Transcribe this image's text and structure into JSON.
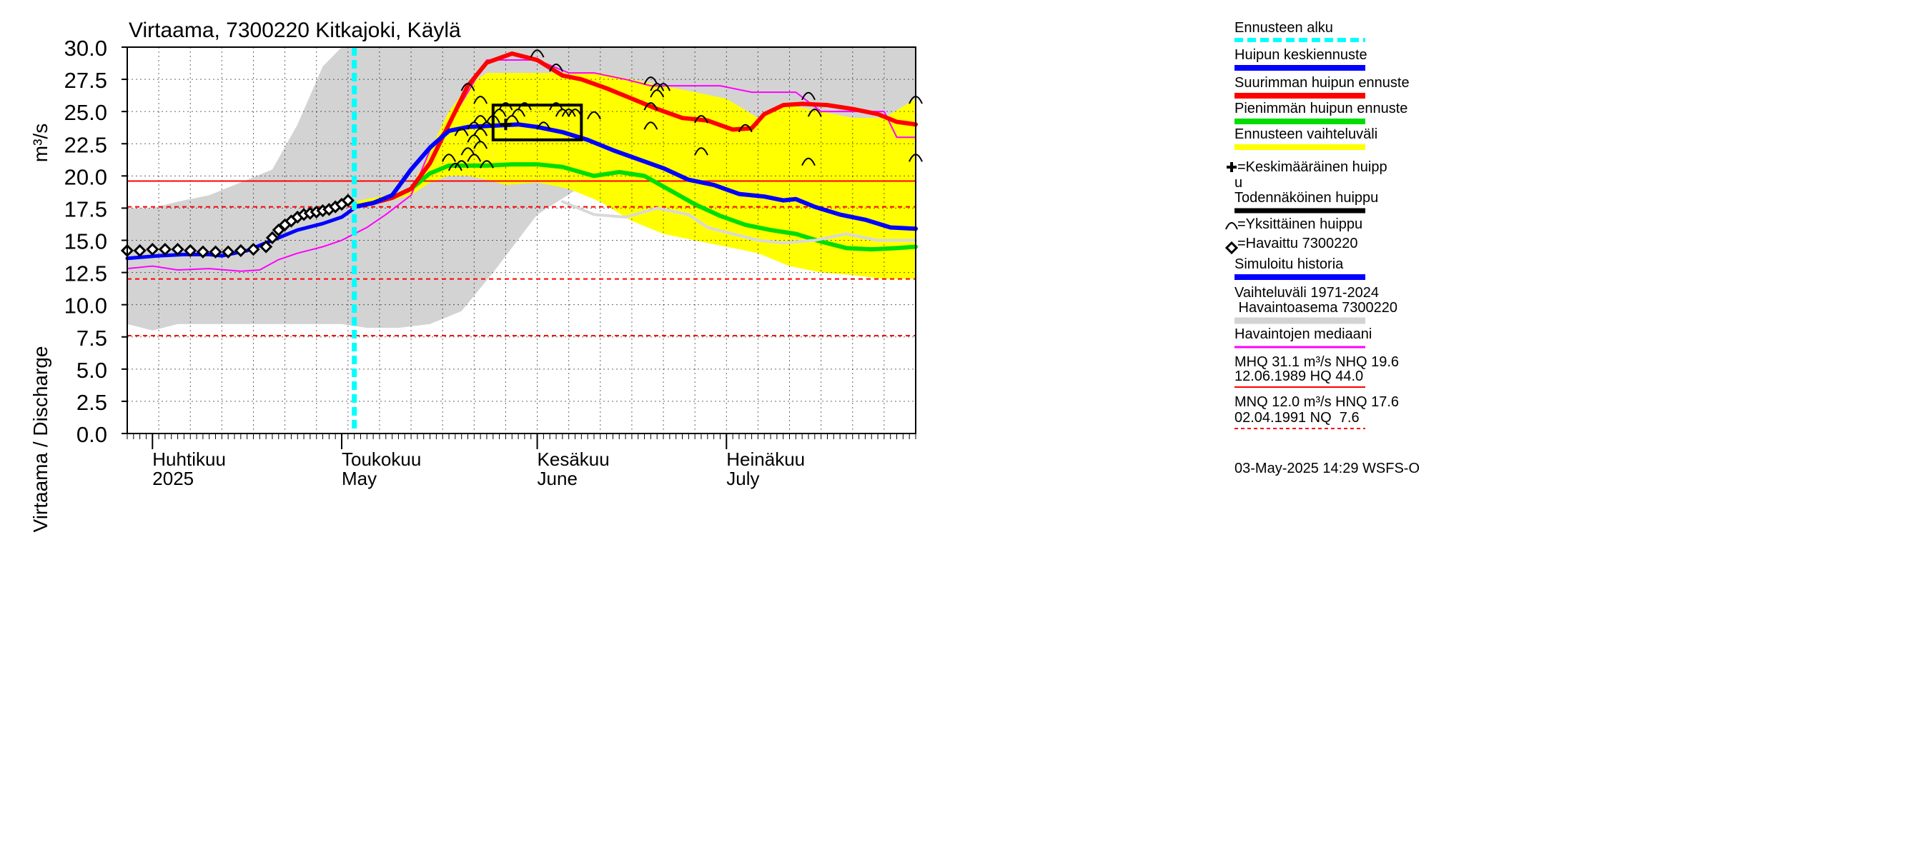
{
  "chart_data": {
    "type": "line",
    "title": "Virtaama, 7300220 Kitkajoki, Käylä",
    "ylabel": "Virtaama / Discharge",
    "yunit": "m³/s",
    "ylim": [
      0,
      30
    ],
    "yticks": [
      "0.0",
      "2.5",
      "5.0",
      "7.5",
      "10.0",
      "12.5",
      "15.0",
      "17.5",
      "20.0",
      "22.5",
      "25.0",
      "27.5",
      "30.0"
    ],
    "xrange": [
      "2025-03-28",
      "2025-07-31"
    ],
    "month_labels": [
      {
        "fi": "Huhtikuu",
        "en": "2025",
        "date": "2025-04-01"
      },
      {
        "fi": "Toukokuu",
        "en": "May",
        "date": "2025-05-01"
      },
      {
        "fi": "Kesäkuu",
        "en": "June",
        "date": "2025-06-01"
      },
      {
        "fi": "Heinäkuu",
        "en": "July",
        "date": "2025-07-01"
      }
    ],
    "forecast_start": "2025-05-03",
    "reference_lines": [
      {
        "label": "NHQ",
        "value": 19.6,
        "style": "solid",
        "color": "#ff0000"
      },
      {
        "label": "HNQ",
        "value": 17.6,
        "style": "dashed",
        "color": "#ff0000"
      },
      {
        "label": "MNQ",
        "value": 12.0,
        "style": "dashed",
        "color": "#ff0000"
      },
      {
        "label": "NQ",
        "value": 7.6,
        "style": "dashed",
        "color": "#ff0000"
      }
    ],
    "hist_range_band": {
      "name": "Vaihteluväli 1971-2024 Havaintoasema 7300220",
      "color": "#d3d3d3",
      "x": [
        "2025-03-28",
        "2025-04-01",
        "2025-04-05",
        "2025-04-10",
        "2025-04-15",
        "2025-04-20",
        "2025-04-24",
        "2025-04-28",
        "2025-05-01",
        "2025-05-05",
        "2025-05-10",
        "2025-05-15",
        "2025-05-20",
        "2025-05-25",
        "2025-06-01",
        "2025-06-10",
        "2025-06-20",
        "2025-06-30",
        "2025-07-10",
        "2025-07-20",
        "2025-07-31"
      ],
      "upper": [
        17.5,
        17.5,
        18.0,
        18.5,
        19.5,
        20.5,
        24.0,
        28.5,
        30.0,
        30.0,
        30.0,
        30.0,
        30.0,
        30.0,
        30.0,
        30.0,
        30.0,
        30.0,
        30.0,
        30.0,
        30.0
      ],
      "lower": [
        8.5,
        8.0,
        8.5,
        8.5,
        8.5,
        8.5,
        8.5,
        8.5,
        8.5,
        8.2,
        8.2,
        8.5,
        9.5,
        12.5,
        17.0,
        19.8,
        18.0,
        16.2,
        15.4,
        15.1,
        15.0
      ]
    },
    "forecast_band": {
      "name": "Ennusteen vaihteluväli",
      "color": "#ffff00",
      "x": [
        "2025-05-03",
        "2025-05-08",
        "2025-05-12",
        "2025-05-15",
        "2025-05-18",
        "2025-05-21",
        "2025-05-24",
        "2025-05-27",
        "2025-06-01",
        "2025-06-06",
        "2025-06-11",
        "2025-06-16",
        "2025-06-21",
        "2025-06-26",
        "2025-07-01",
        "2025-07-06",
        "2025-07-11",
        "2025-07-16",
        "2025-07-21",
        "2025-07-26",
        "2025-07-31"
      ],
      "upper": [
        18.0,
        18.5,
        19.0,
        22.0,
        25.0,
        27.0,
        28.0,
        28.0,
        28.0,
        28.0,
        28.0,
        27.5,
        27.0,
        26.5,
        26.0,
        24.5,
        25.5,
        25.0,
        24.5,
        24.5,
        26.0
      ],
      "lower": [
        17.6,
        18.0,
        18.5,
        19.5,
        20.0,
        20.0,
        19.7,
        19.3,
        19.5,
        19.0,
        18.0,
        16.5,
        15.5,
        15.0,
        14.5,
        14.0,
        13.0,
        12.5,
        12.3,
        12.0,
        12.0
      ]
    },
    "series": [
      {
        "name": "Havaintojen mediaani",
        "color": "#ff00ff",
        "width": 2,
        "x": [
          "2025-03-28",
          "2025-04-01",
          "2025-04-05",
          "2025-04-10",
          "2025-04-15",
          "2025-04-18",
          "2025-04-21",
          "2025-04-24",
          "2025-04-28",
          "2025-05-01",
          "2025-05-05",
          "2025-05-08",
          "2025-05-12",
          "2025-05-15",
          "2025-05-18",
          "2025-05-21",
          "2025-05-24",
          "2025-05-28",
          "2025-06-01",
          "2025-06-06",
          "2025-06-10",
          "2025-06-15",
          "2025-06-19",
          "2025-06-24",
          "2025-06-30",
          "2025-07-05",
          "2025-07-08",
          "2025-07-12",
          "2025-07-16",
          "2025-07-20",
          "2025-07-26",
          "2025-07-28",
          "2025-07-31"
        ],
        "y": [
          12.8,
          13.0,
          12.7,
          12.8,
          12.6,
          12.7,
          13.5,
          14.0,
          14.5,
          15.0,
          16.0,
          17.0,
          18.5,
          22.0,
          24.0,
          26.5,
          29.0,
          29.0,
          29.0,
          28.0,
          28.0,
          27.5,
          27.0,
          27.0,
          27.0,
          26.5,
          26.5,
          26.5,
          25.0,
          25.0,
          25.0,
          23.0,
          23.0
        ]
      },
      {
        "name": "Simuloitu historia",
        "color": "#0000ff",
        "width": 5,
        "x": [
          "2025-03-28",
          "2025-04-02",
          "2025-04-06",
          "2025-04-10",
          "2025-04-12",
          "2025-04-16",
          "2025-04-20",
          "2025-04-24",
          "2025-04-28",
          "2025-05-01",
          "2025-05-03"
        ],
        "y": [
          13.6,
          13.8,
          13.9,
          13.9,
          13.8,
          14.2,
          15.0,
          15.8,
          16.3,
          16.8,
          17.5
        ]
      },
      {
        "name": "Pienimmän huipun ennuste",
        "color": "#00dd00",
        "width": 6,
        "x": [
          "2025-05-03",
          "2025-05-06",
          "2025-05-09",
          "2025-05-12",
          "2025-05-15",
          "2025-05-18",
          "2025-05-21",
          "2025-05-24",
          "2025-05-28",
          "2025-06-01",
          "2025-06-05",
          "2025-06-10",
          "2025-06-14",
          "2025-06-18",
          "2025-06-22",
          "2025-06-26",
          "2025-06-30",
          "2025-07-04",
          "2025-07-08",
          "2025-07-12",
          "2025-07-16",
          "2025-07-20",
          "2025-07-24",
          "2025-07-28",
          "2025-07-31"
        ],
        "y": [
          17.6,
          17.9,
          18.3,
          19.0,
          20.2,
          20.8,
          20.8,
          20.8,
          20.9,
          20.9,
          20.7,
          20.0,
          20.3,
          20.0,
          18.9,
          17.8,
          16.9,
          16.2,
          15.8,
          15.5,
          14.9,
          14.4,
          14.3,
          14.4,
          14.5
        ]
      },
      {
        "name": "Suurimman huipun ennuste",
        "color": "#ff0000",
        "width": 6,
        "x": [
          "2025-05-03",
          "2025-05-06",
          "2025-05-09",
          "2025-05-12",
          "2025-05-15",
          "2025-05-18",
          "2025-05-21",
          "2025-05-24",
          "2025-05-28",
          "2025-06-01",
          "2025-06-05",
          "2025-06-08",
          "2025-06-12",
          "2025-06-16",
          "2025-06-20",
          "2025-06-24",
          "2025-06-28",
          "2025-07-02",
          "2025-07-05",
          "2025-07-07",
          "2025-07-10",
          "2025-07-13",
          "2025-07-17",
          "2025-07-21",
          "2025-07-25",
          "2025-07-28",
          "2025-07-31"
        ],
        "y": [
          17.6,
          17.9,
          18.3,
          19.0,
          21.0,
          24.0,
          27.0,
          28.8,
          29.5,
          29.0,
          27.8,
          27.5,
          26.8,
          26.0,
          25.2,
          24.5,
          24.3,
          23.6,
          23.7,
          24.8,
          25.5,
          25.6,
          25.5,
          25.2,
          24.8,
          24.2,
          24.0
        ]
      },
      {
        "name": "Huipun keskiennuste",
        "color": "#0000ff",
        "width": 6,
        "x": [
          "2025-05-03",
          "2025-05-06",
          "2025-05-09",
          "2025-05-12",
          "2025-05-15",
          "2025-05-18",
          "2025-05-21",
          "2025-05-25",
          "2025-05-29",
          "2025-06-01",
          "2025-06-05",
          "2025-06-09",
          "2025-06-13",
          "2025-06-17",
          "2025-06-21",
          "2025-06-25",
          "2025-06-29",
          "2025-07-03",
          "2025-07-07",
          "2025-07-10",
          "2025-07-12",
          "2025-07-15",
          "2025-07-19",
          "2025-07-23",
          "2025-07-27",
          "2025-07-31"
        ],
        "y": [
          17.6,
          17.9,
          18.5,
          20.5,
          22.2,
          23.5,
          23.8,
          23.9,
          24.0,
          23.8,
          23.4,
          22.8,
          22.0,
          21.3,
          20.6,
          19.7,
          19.3,
          18.6,
          18.4,
          18.1,
          18.2,
          17.6,
          17.0,
          16.6,
          16.0,
          15.9
        ]
      },
      {
        "name": "",
        "color": "#d8d8d8",
        "width": 4,
        "x": [
          "2025-06-05",
          "2025-06-10",
          "2025-06-15",
          "2025-06-20",
          "2025-06-25",
          "2025-06-28",
          "2025-07-02",
          "2025-07-06",
          "2025-07-10",
          "2025-07-15",
          "2025-07-20",
          "2025-07-25",
          "2025-07-31"
        ],
        "y": [
          18.0,
          17.0,
          16.8,
          17.5,
          17.0,
          16.0,
          15.5,
          15.0,
          14.8,
          15.0,
          15.5,
          15.0,
          15.0
        ]
      }
    ],
    "observed": {
      "name": "Havaittu 7300220",
      "x": [
        "2025-03-28",
        "2025-03-30",
        "2025-04-01",
        "2025-04-03",
        "2025-04-05",
        "2025-04-07",
        "2025-04-09",
        "2025-04-11",
        "2025-04-13",
        "2025-04-15",
        "2025-04-17",
        "2025-04-19",
        "2025-04-20",
        "2025-04-21",
        "2025-04-22",
        "2025-04-23",
        "2025-04-24",
        "2025-04-25",
        "2025-04-26",
        "2025-04-27",
        "2025-04-28",
        "2025-04-29",
        "2025-04-30",
        "2025-05-01",
        "2025-05-02"
      ],
      "y": [
        14.2,
        14.2,
        14.3,
        14.3,
        14.3,
        14.2,
        14.1,
        14.1,
        14.1,
        14.2,
        14.3,
        14.5,
        15.2,
        15.8,
        16.2,
        16.5,
        16.8,
        17.0,
        17.1,
        17.2,
        17.3,
        17.4,
        17.6,
        17.8,
        18.1
      ]
    },
    "individual_peaks": {
      "name": "Yksittäinen huippu",
      "x": [
        "2025-05-18",
        "2025-05-19",
        "2025-05-20",
        "2025-05-20",
        "2025-05-21",
        "2025-05-21",
        "2025-05-22",
        "2025-05-22",
        "2025-05-22",
        "2025-05-23",
        "2025-05-23",
        "2025-05-23",
        "2025-05-23",
        "2025-05-24",
        "2025-05-24",
        "2025-05-25",
        "2025-05-26",
        "2025-05-27",
        "2025-05-28",
        "2025-05-29",
        "2025-05-30",
        "2025-06-01",
        "2025-06-02",
        "2025-06-04",
        "2025-06-04",
        "2025-06-05",
        "2025-06-06",
        "2025-06-07",
        "2025-06-10",
        "2025-06-19",
        "2025-06-19",
        "2025-06-19",
        "2025-06-20",
        "2025-06-20",
        "2025-06-21",
        "2025-06-27",
        "2025-06-27",
        "2025-07-04",
        "2025-07-14",
        "2025-07-14",
        "2025-07-15",
        "2025-07-31",
        "2025-07-31"
      ],
      "y": [
        21.5,
        20.8,
        21.0,
        23.5,
        22.0,
        27.0,
        24.0,
        23.0,
        21.5,
        26.0,
        24.5,
        23.5,
        22.5,
        21.0,
        24.0,
        24.5,
        25.0,
        25.5,
        24.5,
        25.0,
        25.5,
        29.6,
        24.0,
        28.5,
        25.5,
        25.0,
        25.0,
        25.0,
        24.8,
        27.5,
        25.5,
        24.0,
        27.0,
        26.5,
        27.0,
        24.5,
        22.0,
        23.8,
        26.3,
        21.2,
        25.0,
        26.0,
        21.5
      ]
    },
    "likely_peak_box": {
      "name": "Todennäköinen huippu",
      "x0": "2025-05-25",
      "x1": "2025-06-08",
      "y0": 22.8,
      "y1": 25.5,
      "color": "#000000"
    },
    "mean_peak": {
      "name": "Keskimääräinen huippu",
      "x": "2025-05-27",
      "y": 24.0
    }
  },
  "legend": {
    "forecast_start": {
      "label": "Ennusteen alku",
      "color": "#00ffff"
    },
    "mean_forecast": {
      "label": "Huipun keskiennuste",
      "color": "#0000ff"
    },
    "max_forecast": {
      "label": "Suurimman huipun ennuste",
      "color": "#ff0000"
    },
    "min_forecast": {
      "label": "Pienimmän huipun ennuste",
      "color": "#00dd00"
    },
    "forecast_range": {
      "label": "Ennusteen vaihteluväli",
      "color": "#ffff00"
    },
    "mean_peak": {
      "line1": "=Keskimääräinen huipp",
      "line2": "u"
    },
    "likely_peak": {
      "label": "Todennäköinen huippu",
      "color": "#000000"
    },
    "single_peak": {
      "label": "=Yksittäinen huippu"
    },
    "observed": {
      "label": "=Havaittu 7300220"
    },
    "simulated": {
      "label": "Simuloitu historia",
      "color": "#0000ff"
    },
    "hist_range": {
      "line1": "Vaihteluväli 1971-2024",
      "line2": " Havaintoasema 7300220",
      "color": "#d3d3d3"
    },
    "median": {
      "label": "Havaintojen mediaani",
      "color": "#ff00ff"
    },
    "stats_high": {
      "line1": "MHQ 31.1 m³/s NHQ 19.6",
      "line2": "12.06.1989 HQ 44.0"
    },
    "stats_low": {
      "line1": "MNQ 12.0 m³/s HNQ 17.6",
      "line2": "02.04.1991 NQ  7.6"
    },
    "timestamp": "03-May-2025 14:29 WSFS-O"
  }
}
